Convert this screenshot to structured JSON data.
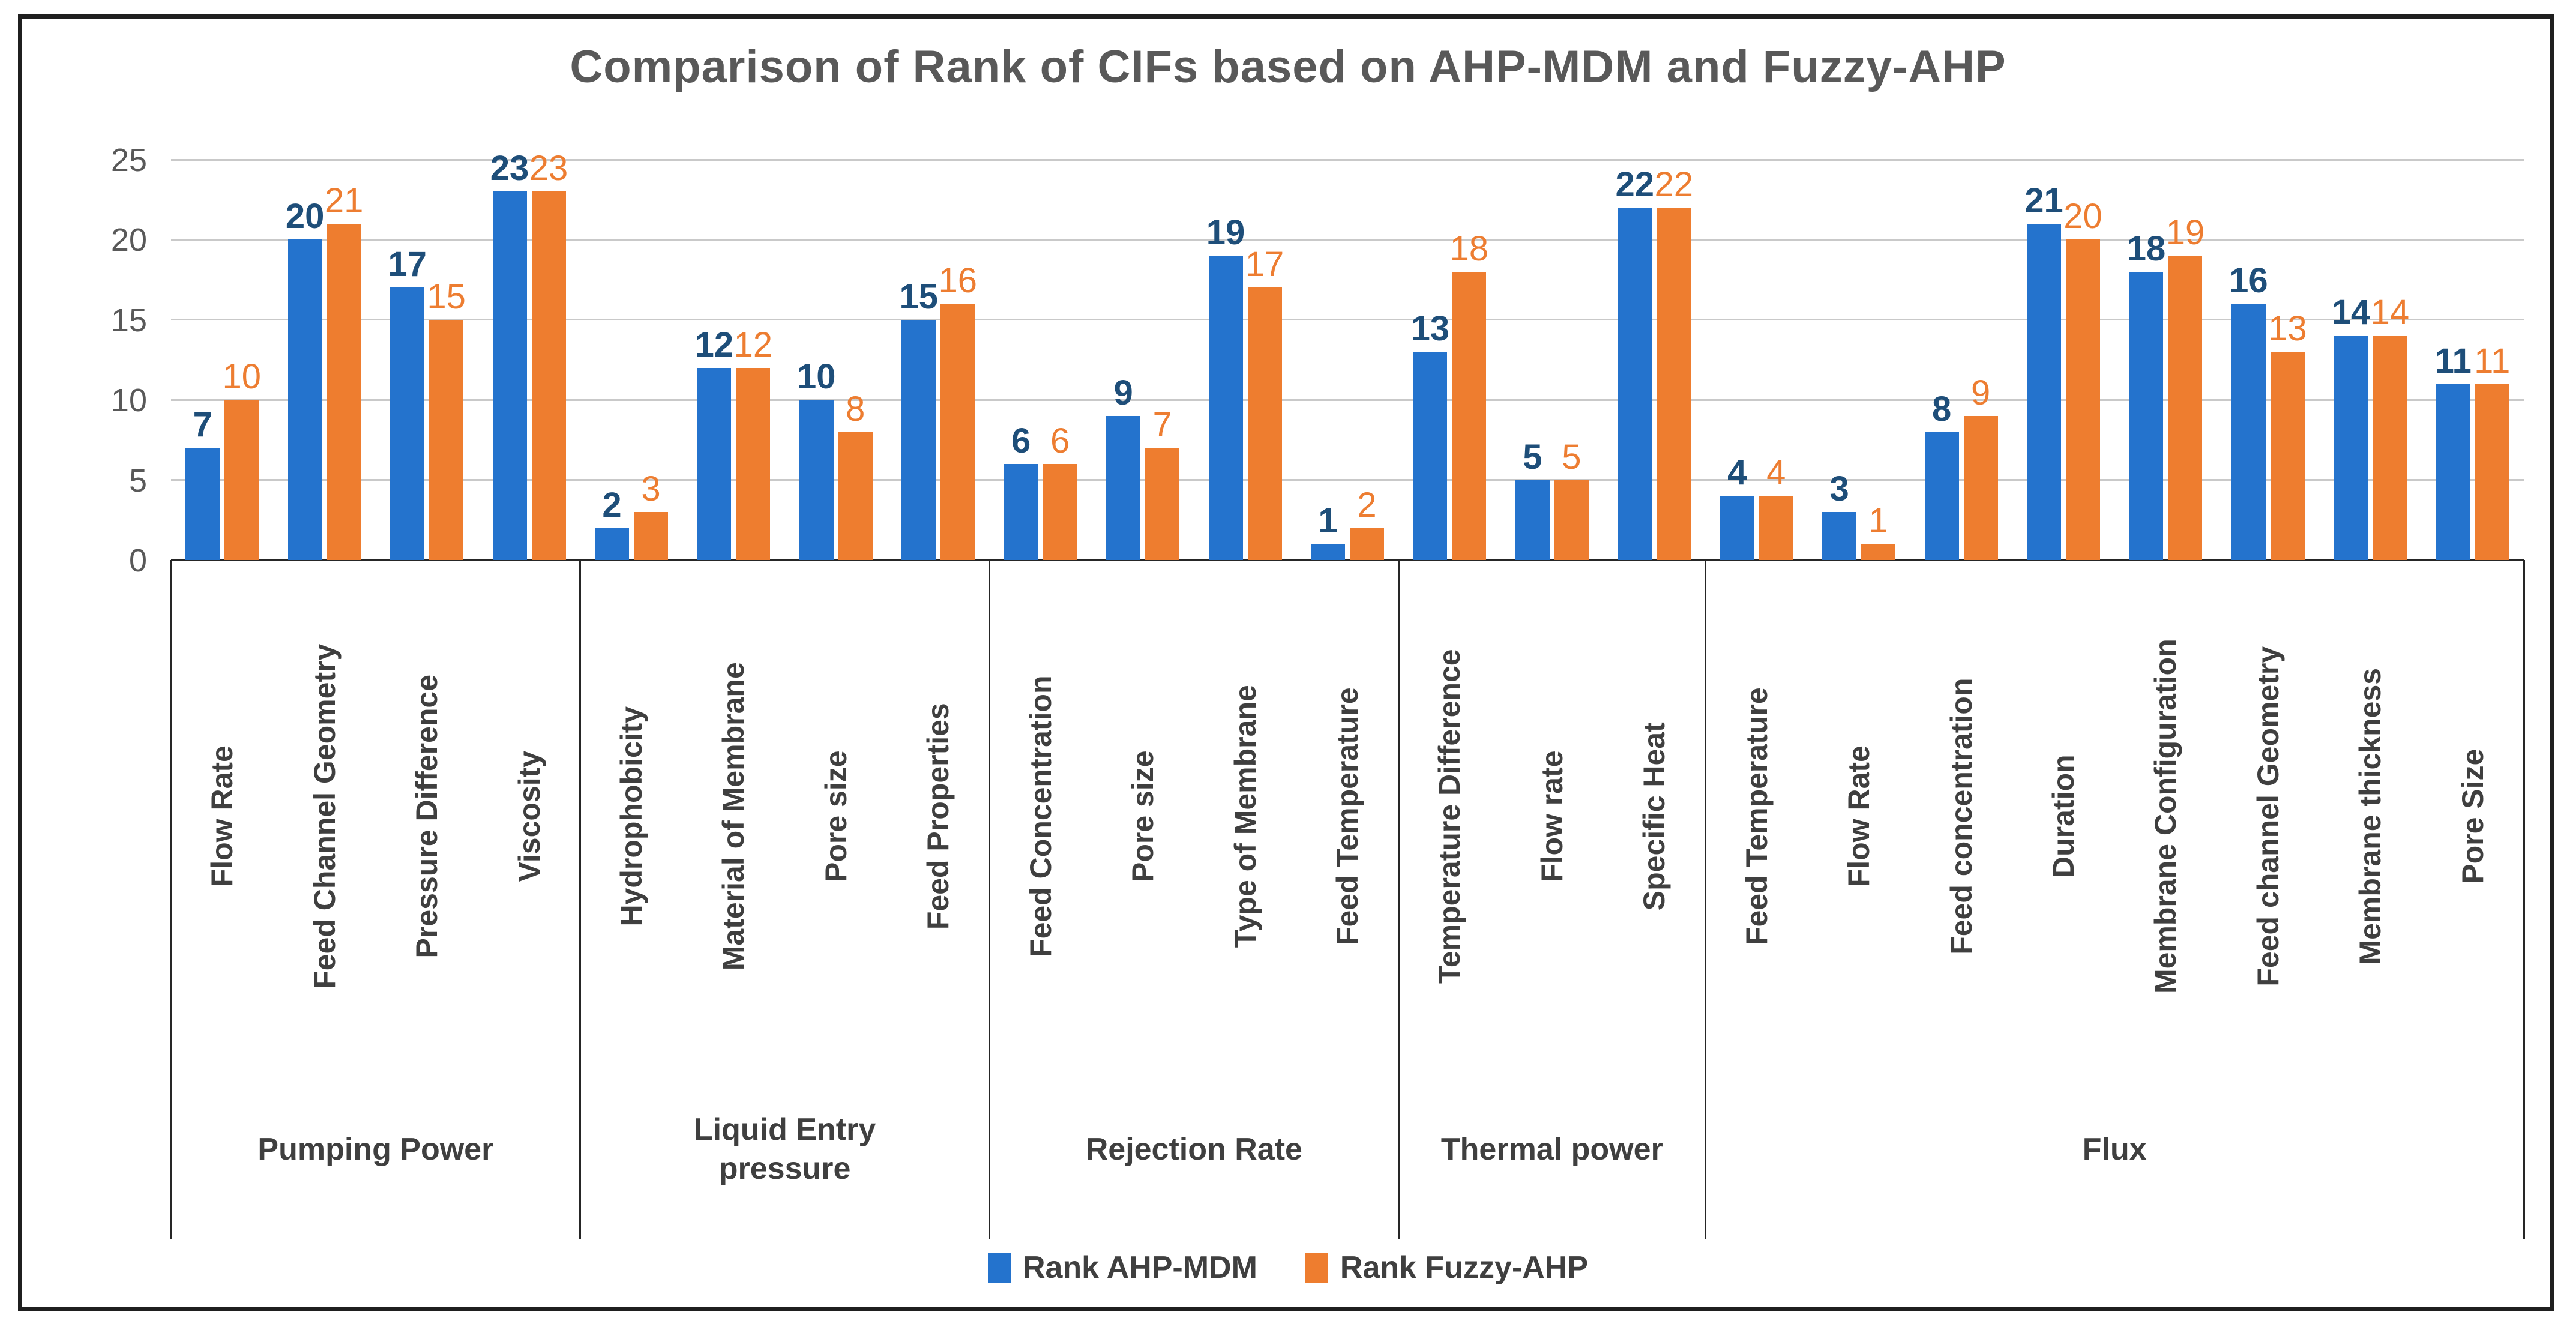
{
  "chart_data": {
    "type": "bar",
    "title": "Comparison of Rank of CIFs based on AHP-MDM and Fuzzy-AHP",
    "xlabel": "",
    "ylabel": "",
    "ylim": [
      0,
      25
    ],
    "yticks": [
      0,
      5,
      10,
      15,
      20,
      25
    ],
    "grid": true,
    "legend_position": "bottom",
    "categories": [
      "Flow Rate",
      "Feed Channel Geometry",
      "Pressure Difference",
      "Viscosity",
      "Hydrophobicity",
      "Material of Membrane",
      "Pore size",
      "Feed Properties",
      "Feed Concentration",
      "Pore size",
      "Type of Membrane",
      "Feed Temperature",
      "Temperature Difference",
      "Flow rate",
      "Specific Heat",
      "Feed Temperature",
      "Flow Rate",
      "Feed concentration",
      "Duration",
      "Membrane Configuration",
      "Feed channel Geometry",
      "Membrane thickness",
      "Pore Size"
    ],
    "groups": [
      {
        "label": "Pumping Power",
        "count": 4
      },
      {
        "label": "Liquid Entry pressure",
        "count": 4
      },
      {
        "label": "Rejection Rate",
        "count": 4
      },
      {
        "label": "Thermal power",
        "count": 3
      },
      {
        "label": "Flux",
        "count": 8
      }
    ],
    "series": [
      {
        "name": "Rank AHP-MDM",
        "color": "#2473cd",
        "values": [
          7,
          20,
          17,
          23,
          2,
          12,
          10,
          15,
          6,
          9,
          19,
          1,
          13,
          5,
          22,
          4,
          3,
          8,
          21,
          18,
          16,
          14,
          11
        ]
      },
      {
        "name": "Rank Fuzzy-AHP",
        "color": "#ee7d2f",
        "values": [
          10,
          21,
          15,
          23,
          3,
          12,
          8,
          16,
          6,
          7,
          17,
          2,
          18,
          5,
          22,
          4,
          1,
          9,
          20,
          19,
          13,
          14,
          11
        ]
      }
    ],
    "value_label_colors": [
      "#1e4e79",
      "#ed7d31"
    ],
    "gridline_color": "#c9c9c9",
    "axis_color": "#262626",
    "title_color": "#595959"
  }
}
